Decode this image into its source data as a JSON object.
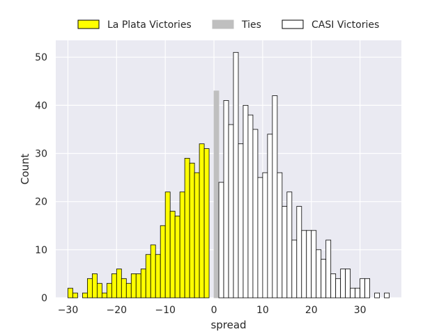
{
  "chart_data": {
    "type": "bar",
    "xlabel": "spread",
    "ylabel": "Count",
    "xlim": [
      -32.5,
      38.5
    ],
    "ylim": [
      0,
      53.5
    ],
    "xticks": [
      -30,
      -20,
      -10,
      0,
      10,
      20,
      30
    ],
    "yticks": [
      0,
      10,
      20,
      30,
      40,
      50
    ],
    "grid": true,
    "legend_position": "top-center",
    "bin_width": 1,
    "series": [
      {
        "name": "La Plata Victories",
        "color": "#ffff00",
        "edge_color": "#000000",
        "x": [
          -30,
          -29,
          -28,
          -27,
          -26,
          -25,
          -24,
          -23,
          -22,
          -21,
          -20,
          -19,
          -18,
          -17,
          -16,
          -15,
          -14,
          -13,
          -12,
          -11,
          -10,
          -9,
          -8,
          -7,
          -6,
          -5,
          -4,
          -3,
          -2,
          -1
        ],
        "values": [
          2,
          1,
          0,
          1,
          4,
          5,
          3,
          1,
          3,
          5,
          6,
          4,
          3,
          5,
          5,
          6,
          9,
          11,
          9,
          15,
          22,
          18,
          17,
          22,
          29,
          28,
          26,
          32,
          31,
          0
        ]
      },
      {
        "name": "Ties",
        "color": "#bfbfbf",
        "edge_color": "#bfbfbf",
        "x": [
          0
        ],
        "values": [
          43
        ]
      },
      {
        "name": "CASI Victories",
        "color": "#ffffff",
        "edge_color": "#000000",
        "x": [
          1,
          2,
          3,
          4,
          5,
          6,
          7,
          8,
          9,
          10,
          11,
          12,
          13,
          14,
          15,
          16,
          17,
          18,
          19,
          20,
          21,
          22,
          23,
          24,
          25,
          26,
          27,
          28,
          29,
          30,
          31,
          32,
          33,
          34,
          35
        ],
        "values": [
          24,
          41,
          36,
          51,
          32,
          40,
          38,
          35,
          25,
          26,
          34,
          42,
          26,
          19,
          22,
          12,
          19,
          14,
          14,
          14,
          10,
          8,
          12,
          5,
          4,
          6,
          6,
          2,
          2,
          4,
          4,
          0,
          1,
          0,
          1
        ]
      }
    ]
  }
}
